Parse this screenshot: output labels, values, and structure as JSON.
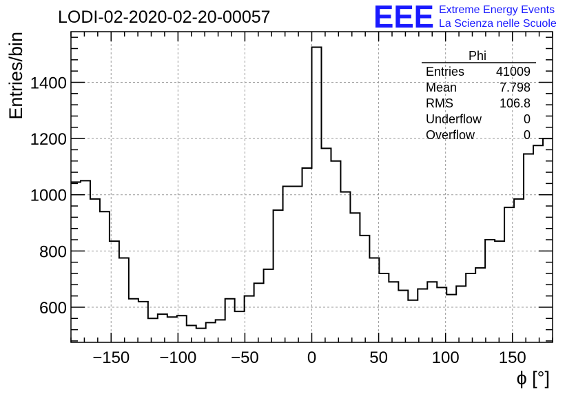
{
  "chart_data": {
    "type": "histogram",
    "title": "LODI-02-2020-02-20-00057",
    "xlabel": "ϕ [°]",
    "ylabel": "Entries/bin",
    "xlim": [
      -180,
      180
    ],
    "ylim": [
      475,
      1580
    ],
    "x_ticks": [
      -150,
      -100,
      -50,
      0,
      50,
      100,
      150
    ],
    "x_tick_labels": [
      "−150",
      "−100",
      "−50",
      "0",
      "50",
      "100",
      "150"
    ],
    "y_ticks": [
      600,
      800,
      1000,
      1200,
      1400
    ],
    "y_tick_labels": [
      "600",
      "800",
      "1000",
      "1200",
      "1400"
    ],
    "grid": true,
    "bin_width": 7.2,
    "values": [
      1045,
      1050,
      985,
      940,
      835,
      775,
      630,
      620,
      560,
      575,
      565,
      570,
      535,
      525,
      545,
      555,
      630,
      585,
      640,
      685,
      735,
      945,
      1030,
      1030,
      1095,
      1525,
      1165,
      1120,
      1010,
      935,
      855,
      775,
      720,
      690,
      660,
      625,
      665,
      690,
      670,
      645,
      675,
      720,
      740,
      840,
      835,
      955,
      985,
      1145,
      1175,
      1200
    ]
  },
  "stats_box": {
    "title": "Phi",
    "rows": [
      {
        "label": "Entries",
        "value": "41009"
      },
      {
        "label": "Mean",
        "value": "7.798"
      },
      {
        "label": "RMS",
        "value": "106.8"
      },
      {
        "label": "Underflow",
        "value": "0"
      },
      {
        "label": "Overflow",
        "value": "0"
      }
    ]
  },
  "logo": {
    "mark": "EEE",
    "line1": "Extreme Energy Events",
    "line2": "La Scienza nelle Scuole",
    "color": "#1a1aff"
  }
}
